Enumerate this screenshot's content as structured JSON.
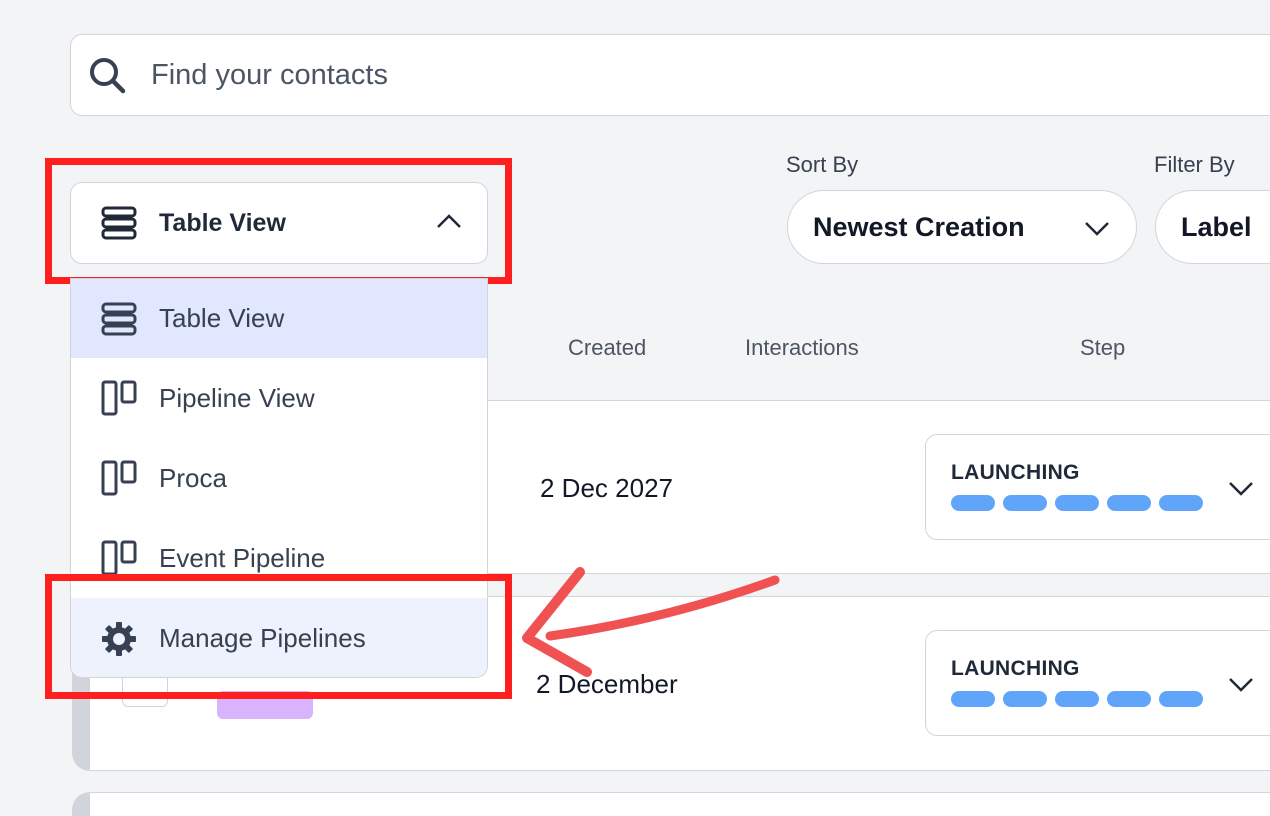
{
  "search": {
    "placeholder": "Find your contacts",
    "icon": "search-icon"
  },
  "view_selector": {
    "label": "Table View",
    "icon": "table-rows-icon",
    "expanded": true
  },
  "view_menu": {
    "items": [
      {
        "label": "Table View",
        "icon": "table-rows-icon",
        "selected": true
      },
      {
        "label": "Pipeline View",
        "icon": "columns-icon"
      },
      {
        "label": "Proca",
        "icon": "columns-icon"
      },
      {
        "label": "Event Pipeline",
        "icon": "columns-icon"
      },
      {
        "label": "Manage Pipelines",
        "icon": "gear-icon",
        "highlighted": true
      }
    ]
  },
  "sort": {
    "label": "Sort By",
    "value": "Newest Creation"
  },
  "filter": {
    "label": "Filter By",
    "value": "Label"
  },
  "table": {
    "headers": [
      "Created",
      "Interactions",
      "Step"
    ],
    "rows": [
      {
        "created": "2 Dec 2027",
        "step": "LAUNCHING",
        "progress_segments": 5
      },
      {
        "created": "2 December",
        "step": "LAUNCHING",
        "progress_segments": 5
      }
    ]
  },
  "colors": {
    "annotation": "#ff1f1f",
    "arrow": "#f05252",
    "progress": "#60a5fa",
    "selected_item": "#e0e7ff",
    "tag": "#d8b4fe"
  }
}
